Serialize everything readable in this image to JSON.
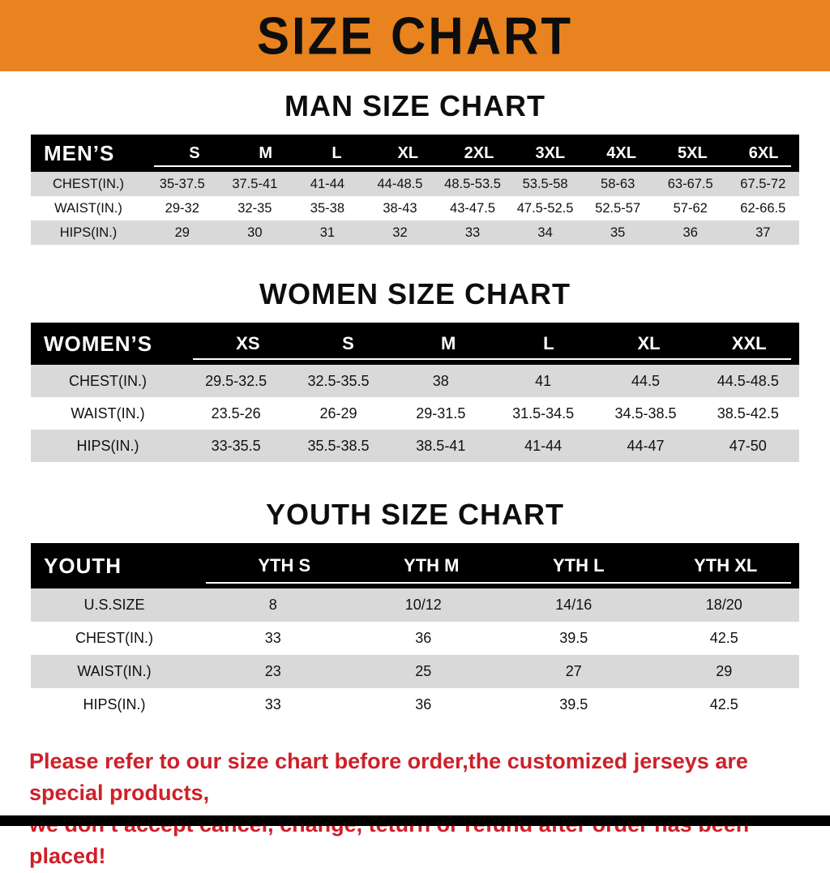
{
  "banner": {
    "title": "SIZE CHART"
  },
  "colors": {
    "banner_bg": "#E8831F",
    "table_header_bg": "#000000",
    "row_shade": "#D9D9D9",
    "note_red": "#CE2029",
    "bottom_bar": "#000000"
  },
  "sections": [
    {
      "title": "MAN SIZE CHART",
      "header_label": "MEN’S",
      "columns": [
        "S",
        "M",
        "L",
        "XL",
        "2XL",
        "3XL",
        "4XL",
        "5XL",
        "6XL"
      ],
      "rows": [
        {
          "label": "CHEST(IN.)",
          "values": [
            "35-37.5",
            "37.5-41",
            "41-44",
            "44-48.5",
            "48.5-53.5",
            "53.5-58",
            "58-63",
            "63-67.5",
            "67.5-72"
          ]
        },
        {
          "label": "WAIST(IN.)",
          "values": [
            "29-32",
            "32-35",
            "35-38",
            "38-43",
            "43-47.5",
            "47.5-52.5",
            "52.5-57",
            "57-62",
            "62-66.5"
          ]
        },
        {
          "label": "HIPS(IN.)",
          "values": [
            "29",
            "30",
            "31",
            "32",
            "33",
            "34",
            "35",
            "36",
            "37"
          ]
        }
      ]
    },
    {
      "title": "WOMEN SIZE CHART",
      "header_label": "WOMEN’S",
      "columns": [
        "XS",
        "S",
        "M",
        "L",
        "XL",
        "XXL"
      ],
      "rows": [
        {
          "label": "CHEST(IN.)",
          "values": [
            "29.5-32.5",
            "32.5-35.5",
            "38",
            "41",
            "44.5",
            "44.5-48.5"
          ]
        },
        {
          "label": "WAIST(IN.)",
          "values": [
            "23.5-26",
            "26-29",
            "29-31.5",
            "31.5-34.5",
            "34.5-38.5",
            "38.5-42.5"
          ]
        },
        {
          "label": "HIPS(IN.)",
          "values": [
            "33-35.5",
            "35.5-38.5",
            "38.5-41",
            "41-44",
            "44-47",
            "47-50"
          ]
        }
      ]
    },
    {
      "title": "YOUTH SIZE CHART",
      "header_label": "YOUTH",
      "columns": [
        "YTH S",
        "YTH M",
        "YTH L",
        "YTH XL"
      ],
      "rows": [
        {
          "label": "U.S.SIZE",
          "values": [
            "8",
            "10/12",
            "14/16",
            "18/20"
          ]
        },
        {
          "label": "CHEST(IN.)",
          "values": [
            "33",
            "36",
            "39.5",
            "42.5"
          ]
        },
        {
          "label": "WAIST(IN.)",
          "values": [
            "23",
            "25",
            "27",
            "29"
          ]
        },
        {
          "label": "HIPS(IN.)",
          "values": [
            "33",
            "36",
            "39.5",
            "42.5"
          ]
        }
      ]
    }
  ],
  "footer": {
    "lines": [
      "Please refer to our size chart before order,the customized jerseys are special products,",
      "we don’t accept cancel, change, teturn or refund after order has been placed!"
    ]
  }
}
